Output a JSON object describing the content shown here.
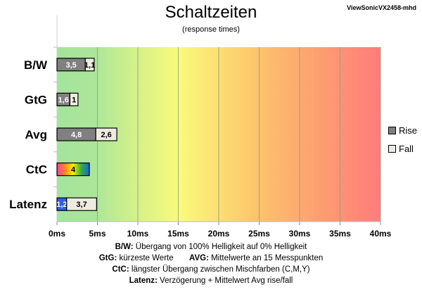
{
  "chart_data": {
    "type": "bar",
    "orientation": "horizontal",
    "stacked": true,
    "title": "Schaltzeiten",
    "subtitle": "(response times)",
    "model": "ViewSonicVX2458-mhd",
    "categories": [
      "B/W",
      "GtG",
      "Avg",
      "CtC",
      "Latenz"
    ],
    "series": [
      {
        "name": "Rise",
        "color": "#808080",
        "values": [
          3.5,
          1.6,
          4.8,
          4,
          1.2
        ],
        "labels": [
          "3,5",
          "1,6",
          "4,8",
          "4",
          "1,2"
        ]
      },
      {
        "name": "Fall",
        "color": "#eeece1",
        "values": [
          1.1,
          1,
          2.6,
          null,
          3.7
        ],
        "labels": [
          "1,1",
          "1",
          "2,6",
          "",
          "3,7"
        ]
      }
    ],
    "xlim": [
      0,
      40
    ],
    "xticks": [
      0,
      5,
      10,
      15,
      20,
      25,
      30,
      35,
      40
    ],
    "xtick_labels": [
      "0ms",
      "5ms",
      "10ms",
      "15ms",
      "20ms",
      "25ms",
      "30ms",
      "35ms",
      "40ms"
    ],
    "grid": true,
    "legend_position": "right",
    "special_colors": {
      "CtC": "rainbow",
      "Latenz_rise": "#3060e0"
    }
  },
  "notes": [
    {
      "key": "B/W:",
      "text": " Übergang von 100% Helligkeit auf 0% Helligkeit"
    },
    {
      "key": "GtG:",
      "text": " kürzeste Werte",
      "key2": "AVG:",
      "text2": " Mittelwerte an 15 Messpunkten"
    },
    {
      "key": "CtC:",
      "text": " längster Übergang zwischen Mischfarben (C,M,Y)"
    },
    {
      "key": "Latenz:",
      "text": " Verzögerung + Mittelwert Avg rise/fall"
    }
  ]
}
